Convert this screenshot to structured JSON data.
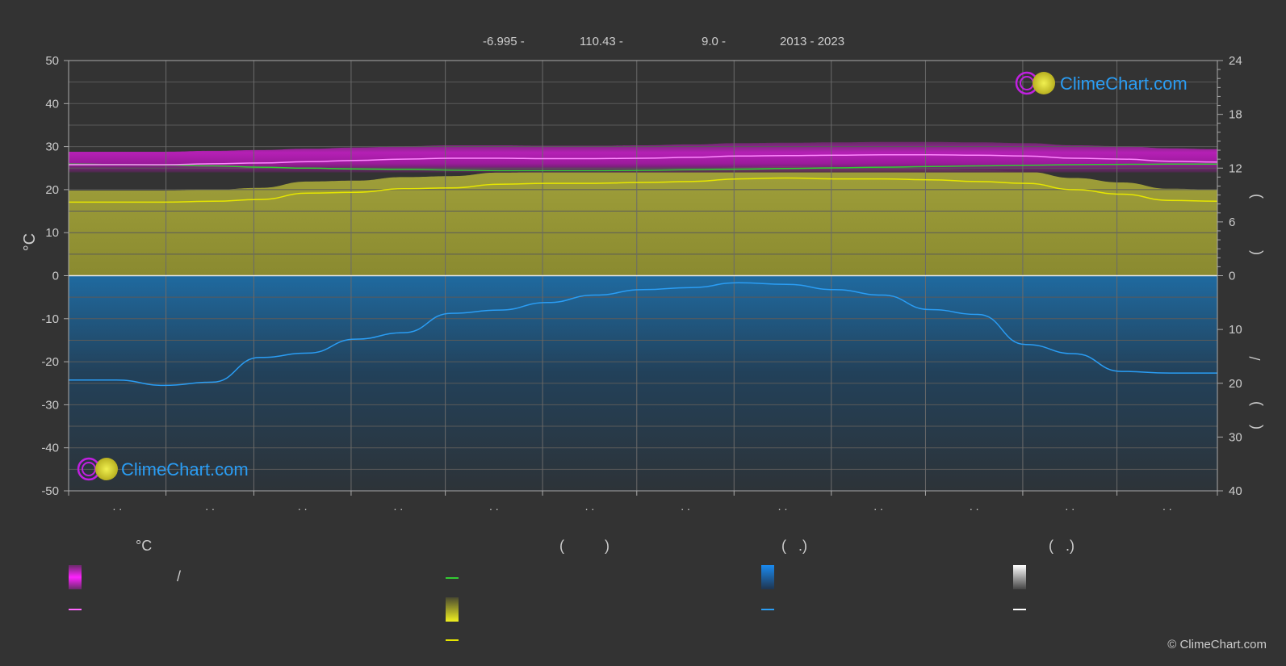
{
  "header": {
    "lat": "-6.995 -",
    "lon": "110.43 -",
    "elev": "9.0 -",
    "years": "2013 - 2023"
  },
  "logo": {
    "text": "ClimeChart.com"
  },
  "copyright": "© ClimeChart.com",
  "legend": {
    "col1_title": "°C",
    "col1_sep": "/",
    "col2_title": "(          )",
    "col3_title": "(   .)",
    "col4_title": "(   .)"
  },
  "colors": {
    "background": "#333333",
    "max_temp": "#ff66ff",
    "temp_band": "#d01fd0",
    "daylight": "#33cc33",
    "sunshine": "#e6e600",
    "sunshine_fill": "#9a9a35",
    "rain": "#2a9df4",
    "rain_fill": "#1f5a86",
    "logo": "#2a9df4"
  },
  "chart_data": {
    "type": "line",
    "title": "",
    "ylabel": "°C",
    "ylim": [
      -50,
      50
    ],
    "yticks": [
      50,
      40,
      30,
      20,
      10,
      0,
      -10,
      -20,
      -30,
      -40,
      -50
    ],
    "right_top_ticks": [
      24,
      18,
      12,
      6,
      0
    ],
    "right_top_range": [
      0,
      24
    ],
    "right_bottom_ticks": [
      0,
      10,
      20,
      30,
      40
    ],
    "right_bottom_range": [
      0,
      40
    ],
    "right_axis_glyphs": [
      ")",
      "(",
      "/",
      ")",
      "("
    ],
    "x_tick_labels": [
      ". .",
      ". .",
      ". .",
      ". .",
      ". .",
      ". .",
      ". .",
      ". .",
      ". .",
      ". .",
      ". .",
      ". ."
    ],
    "x": [
      0,
      0.5,
      1,
      1.5,
      2,
      2.5,
      3,
      3.5,
      4,
      4.5,
      5,
      5.5,
      6,
      6.5,
      7,
      7.5,
      8,
      8.5,
      9,
      9.5,
      10,
      10.5,
      11,
      11.5,
      12
    ],
    "series": [
      {
        "key": "max_temp",
        "values": [
          25.8,
          25.8,
          25.8,
          26.0,
          26.2,
          26.5,
          26.8,
          27.1,
          27.3,
          27.3,
          27.2,
          27.2,
          27.3,
          27.5,
          27.8,
          27.9,
          28.0,
          28.1,
          28.1,
          28.0,
          27.8,
          27.3,
          27.1,
          26.6,
          26.4
        ]
      },
      {
        "key": "daylight_hours",
        "values": [
          12.45,
          12.4,
          12.35,
          12.25,
          12.1,
          12.0,
          11.9,
          11.85,
          11.78,
          11.72,
          11.72,
          11.72,
          11.75,
          11.82,
          11.88,
          11.95,
          12.02,
          12.1,
          12.18,
          12.25,
          12.32,
          12.38,
          12.42,
          12.45,
          12.45
        ]
      },
      {
        "key": "sunshine_hours",
        "values": [
          8.2,
          8.2,
          8.2,
          8.3,
          8.5,
          9.2,
          9.3,
          9.7,
          9.8,
          10.2,
          10.3,
          10.3,
          10.4,
          10.5,
          10.8,
          10.9,
          10.8,
          10.8,
          10.7,
          10.5,
          10.3,
          9.6,
          9.1,
          8.4,
          8.3
        ]
      },
      {
        "key": "rain_mm",
        "values": [
          19.4,
          19.4,
          20.4,
          19.8,
          15.2,
          14.4,
          11.8,
          10.6,
          7.0,
          6.4,
          5.0,
          3.6,
          2.6,
          2.2,
          1.3,
          1.6,
          2.6,
          3.6,
          6.3,
          7.2,
          12.8,
          14.5,
          17.8,
          18.1,
          18.1
        ]
      }
    ],
    "band_temp": {
      "upper": 29.5,
      "lower": 24.0
    },
    "grid": true
  }
}
